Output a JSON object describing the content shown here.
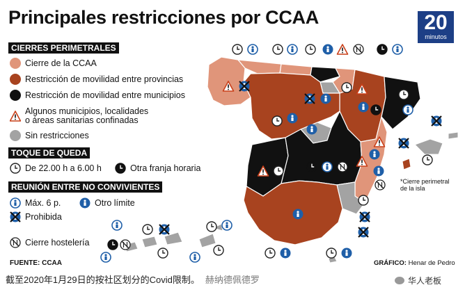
{
  "title": "Principales restricciones por CCAA",
  "logo": {
    "number": "20",
    "word": "minutos"
  },
  "legend": {
    "perimeter": {
      "heading": "CIERRES PERIMETRALES",
      "items": [
        {
          "label": "Cierre de la CCAA",
          "color": "#e0957a"
        },
        {
          "label": "Restricción de movilidad entre provincias",
          "color": "#a8431f"
        },
        {
          "label": "Restricción de movilidad entre municipios",
          "color": "#111111"
        },
        {
          "label_line1": "Algunos municipios, localidades",
          "label_line2": "o áreas sanitarias confinadas",
          "icon": "warning-icon"
        },
        {
          "label": "Sin restricciones",
          "color": "#a3a3a3"
        }
      ]
    },
    "curfew": {
      "heading": "TOQUE DE QUEDA",
      "item1": "De 22.00 h a 6.00 h",
      "item2": "Otra franja horaria"
    },
    "meetings": {
      "heading": "REUNIÓN ENTRE NO CONVIVIENTES",
      "item1": "Máx. 6 p.",
      "item2": "Otro límite",
      "item3": "Prohibida"
    },
    "hospitality": {
      "label": "Cierre hostelería"
    }
  },
  "map_note": {
    "line1": "*Cierre perimetral",
    "line2": "de la isla"
  },
  "source": "FUENTE: CCAA",
  "credit": {
    "label": "GRÁFICO:",
    "author": "Henar de Pedro"
  },
  "caption": {
    "text": "截至2020年1月29日的按社区划分的Covid限制。",
    "author": "赫纳德佩德罗"
  },
  "watermark": "华人老板",
  "colors": {
    "light": "#e0957a",
    "brown": "#a8431f",
    "black": "#111111",
    "grey": "#a3a3a3",
    "blue": "#1f5fa8"
  }
}
